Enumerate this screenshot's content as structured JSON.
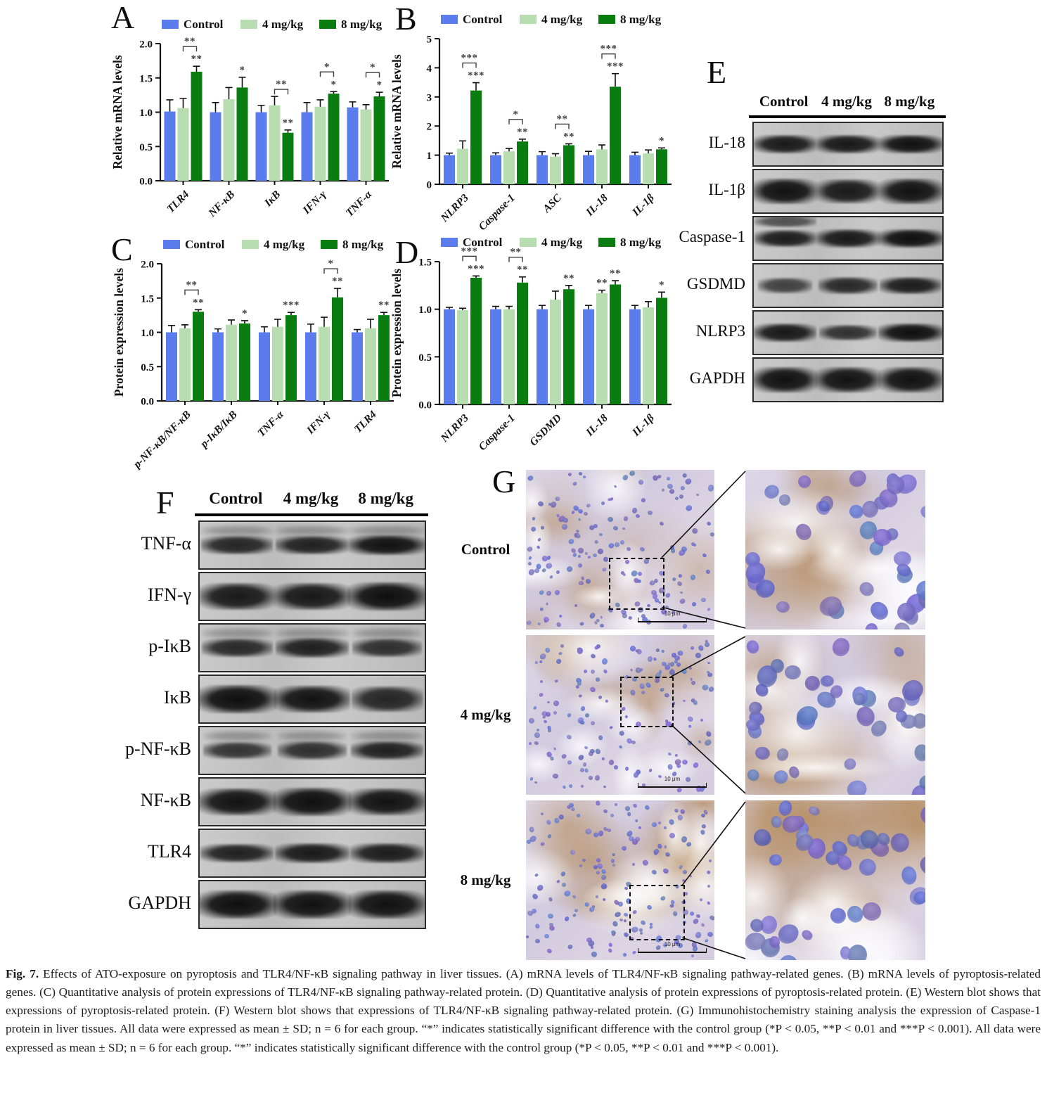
{
  "legend": {
    "items": [
      {
        "label": "Control",
        "color": "#5a7cec"
      },
      {
        "label": "4 mg/kg",
        "color": "#b7ddb0"
      },
      {
        "label": "8 mg/kg",
        "color": "#0a7d11"
      }
    ]
  },
  "chart_data": [
    {
      "letter": "A",
      "type": "bar",
      "ylabel": "Relative mRNA levels",
      "ylim": [
        0,
        2.0
      ],
      "yticks": [
        0,
        0.5,
        1.0,
        1.5,
        2.0
      ],
      "tick_decimals": 1,
      "grid": false,
      "legend_position": "top",
      "categories": [
        "TLR4",
        "NF-κB",
        "IκB",
        "IFN-γ",
        "TNF-α"
      ],
      "series": [
        {
          "name": "Control",
          "values": [
            1.01,
            1.0,
            1.0,
            1.0,
            1.07
          ],
          "errors": [
            0.17,
            0.14,
            0.1,
            0.14,
            0.08
          ]
        },
        {
          "name": "4 mg/kg",
          "values": [
            1.06,
            1.19,
            1.1,
            1.08,
            1.04
          ],
          "errors": [
            0.14,
            0.17,
            0.13,
            0.1,
            0.07
          ]
        },
        {
          "name": "8 mg/kg",
          "values": [
            1.59,
            1.36,
            0.7,
            1.27,
            1.23
          ],
          "errors": [
            0.08,
            0.15,
            0.04,
            0.03,
            0.06
          ]
        }
      ],
      "annotations": [
        {
          "cat": 0,
          "type": "bar",
          "series": 2,
          "stars": "**"
        },
        {
          "cat": 0,
          "type": "bracket",
          "stars": "**"
        },
        {
          "cat": 1,
          "type": "bar",
          "series": 2,
          "stars": "*"
        },
        {
          "cat": 2,
          "type": "bar",
          "series": 2,
          "stars": "**"
        },
        {
          "cat": 2,
          "type": "bracket",
          "stars": "**"
        },
        {
          "cat": 3,
          "type": "bar",
          "series": 2,
          "stars": "*"
        },
        {
          "cat": 3,
          "type": "bracket",
          "stars": "*"
        },
        {
          "cat": 4,
          "type": "bar",
          "series": 2,
          "stars": "*"
        },
        {
          "cat": 4,
          "type": "bracket",
          "stars": "*"
        }
      ]
    },
    {
      "letter": "B",
      "type": "bar",
      "ylabel": "Relative mRNA levels",
      "ylim": [
        0,
        5
      ],
      "yticks": [
        0,
        1,
        2,
        3,
        4,
        5
      ],
      "tick_decimals": 0,
      "grid": false,
      "legend_position": "top",
      "categories": [
        "NLRP3",
        "Caspase-1",
        "ASC",
        "IL-18",
        "IL-1β"
      ],
      "series": [
        {
          "name": "Control",
          "values": [
            1.0,
            1.0,
            1.0,
            1.0,
            1.0
          ],
          "errors": [
            0.07,
            0.08,
            0.12,
            0.13,
            0.1
          ]
        },
        {
          "name": "4 mg/kg",
          "values": [
            1.22,
            1.13,
            0.95,
            1.2,
            1.06
          ],
          "errors": [
            0.27,
            0.1,
            0.1,
            0.15,
            0.12
          ]
        },
        {
          "name": "8 mg/kg",
          "values": [
            3.22,
            1.47,
            1.34,
            3.35,
            1.2
          ],
          "errors": [
            0.27,
            0.08,
            0.05,
            0.45,
            0.05
          ]
        }
      ],
      "annotations": [
        {
          "cat": 0,
          "type": "bar",
          "series": 2,
          "stars": "***"
        },
        {
          "cat": 0,
          "type": "bracket",
          "stars": "***"
        },
        {
          "cat": 1,
          "type": "bar",
          "series": 2,
          "stars": "**"
        },
        {
          "cat": 1,
          "type": "bracket",
          "stars": "*"
        },
        {
          "cat": 2,
          "type": "bar",
          "series": 2,
          "stars": "**"
        },
        {
          "cat": 2,
          "type": "bracket",
          "stars": "**"
        },
        {
          "cat": 3,
          "type": "bar",
          "series": 2,
          "stars": "***"
        },
        {
          "cat": 3,
          "type": "bracket",
          "stars": "***"
        },
        {
          "cat": 4,
          "type": "bar",
          "series": 2,
          "stars": "*"
        }
      ]
    },
    {
      "letter": "C",
      "type": "bar",
      "ylabel": "Protein expression levels",
      "ylim": [
        0,
        2.0
      ],
      "yticks": [
        0,
        0.5,
        1.0,
        1.5,
        2.0
      ],
      "tick_decimals": 1,
      "grid": false,
      "legend_position": "top",
      "categories": [
        "p-NF-κB/NF-κB",
        "p-IκB/IκB",
        "TNF-α",
        "IFN-γ",
        "TLR4"
      ],
      "series": [
        {
          "name": "Control",
          "values": [
            1.0,
            1.0,
            1.0,
            1.0,
            1.0
          ],
          "errors": [
            0.1,
            0.05,
            0.08,
            0.12,
            0.04
          ]
        },
        {
          "name": "4 mg/kg",
          "values": [
            1.06,
            1.11,
            1.08,
            1.08,
            1.06
          ],
          "errors": [
            0.05,
            0.07,
            0.11,
            0.14,
            0.13
          ]
        },
        {
          "name": "8 mg/kg",
          "values": [
            1.3,
            1.13,
            1.25,
            1.51,
            1.25
          ],
          "errors": [
            0.03,
            0.04,
            0.04,
            0.13,
            0.04
          ]
        }
      ],
      "annotations": [
        {
          "cat": 0,
          "type": "bar",
          "series": 2,
          "stars": "**"
        },
        {
          "cat": 0,
          "type": "bracket",
          "stars": "**"
        },
        {
          "cat": 1,
          "type": "bar",
          "series": 2,
          "stars": "*"
        },
        {
          "cat": 2,
          "type": "bar",
          "series": 2,
          "stars": "***"
        },
        {
          "cat": 3,
          "type": "bar",
          "series": 2,
          "stars": "**"
        },
        {
          "cat": 3,
          "type": "bracket",
          "stars": "*"
        },
        {
          "cat": 4,
          "type": "bar",
          "series": 2,
          "stars": "**"
        }
      ]
    },
    {
      "letter": "D",
      "type": "bar",
      "ylabel": "Protein expression levels",
      "ylim": [
        0,
        1.5
      ],
      "yticks": [
        0,
        0.5,
        1.0,
        1.5
      ],
      "tick_decimals": 1,
      "grid": false,
      "legend_position": "top",
      "categories": [
        "NLRP3",
        "Caspase-1",
        "GSDMD",
        "IL-18",
        "IL-1β"
      ],
      "series": [
        {
          "name": "Control",
          "values": [
            1.0,
            1.0,
            1.0,
            1.0,
            1.0
          ],
          "errors": [
            0.02,
            0.03,
            0.04,
            0.04,
            0.04
          ]
        },
        {
          "name": "4 mg/kg",
          "values": [
            0.99,
            1.0,
            1.1,
            1.17,
            1.02
          ],
          "errors": [
            0.02,
            0.03,
            0.09,
            0.03,
            0.06
          ]
        },
        {
          "name": "8 mg/kg",
          "values": [
            1.33,
            1.28,
            1.21,
            1.26,
            1.12
          ],
          "errors": [
            0.02,
            0.06,
            0.04,
            0.04,
            0.06
          ]
        }
      ],
      "annotations": [
        {
          "cat": 0,
          "type": "bar",
          "series": 2,
          "stars": "***"
        },
        {
          "cat": 0,
          "type": "bracket",
          "stars": "***"
        },
        {
          "cat": 1,
          "type": "bar",
          "series": 2,
          "stars": "**"
        },
        {
          "cat": 1,
          "type": "bracket",
          "stars": "**"
        },
        {
          "cat": 2,
          "type": "bar",
          "series": 2,
          "stars": "**"
        },
        {
          "cat": 3,
          "type": "bar",
          "series": 1,
          "stars": "**"
        },
        {
          "cat": 3,
          "type": "bar",
          "series": 2,
          "stars": "**"
        },
        {
          "cat": 4,
          "type": "bar",
          "series": 2,
          "stars": "*"
        }
      ]
    }
  ],
  "western_blots": [
    {
      "letter": "E",
      "col_headers": [
        "Control",
        "4 mg/kg",
        "8 mg/kg"
      ],
      "rows": [
        {
          "protein": "IL-18",
          "bands": [
            0.88,
            0.9,
            0.97
          ]
        },
        {
          "protein": "IL-1β",
          "bands": [
            0.97,
            0.88,
            0.96
          ],
          "tall": 1
        },
        {
          "protein": "Caspase-1",
          "bands": [
            0.85,
            0.88,
            1.0
          ],
          "double": [
            1,
            0,
            0
          ]
        },
        {
          "protein": "GSDMD",
          "bands": [
            0.45,
            0.72,
            0.85
          ]
        },
        {
          "protein": "NLRP3",
          "bands": [
            0.9,
            0.62,
            1.0
          ]
        },
        {
          "protein": "GAPDH",
          "bands": [
            0.97,
            0.95,
            0.96
          ],
          "tall": 1
        }
      ]
    },
    {
      "letter": "F",
      "col_headers": [
        "Control",
        "4 mg/kg",
        "8 mg/kg"
      ],
      "rows": [
        {
          "protein": "TNF-α",
          "bands": [
            0.75,
            0.8,
            0.97
          ],
          "smear": 1
        },
        {
          "protein": "IFN-γ",
          "bands": [
            0.88,
            0.9,
            1.0
          ],
          "tall": 1
        },
        {
          "protein": "p-IκB",
          "bands": [
            0.72,
            0.82,
            0.65
          ],
          "smear": 1
        },
        {
          "protein": "IκB",
          "bands": [
            1.0,
            0.95,
            0.75
          ],
          "tall": 1
        },
        {
          "protein": "p-NF-κB",
          "bands": [
            0.6,
            0.65,
            0.8
          ],
          "smear": 1
        },
        {
          "protein": "NF-κB",
          "bands": [
            0.95,
            1.0,
            0.95
          ],
          "tall": 1
        },
        {
          "protein": "TLR4",
          "bands": [
            0.8,
            0.88,
            0.85
          ]
        },
        {
          "protein": "GAPDH",
          "bands": [
            1.0,
            0.97,
            0.97
          ],
          "tall": 1
        }
      ]
    }
  ],
  "ihc": {
    "letter": "G",
    "scale_label": "10 μm",
    "rows": [
      {
        "label": "Control",
        "brown": 0.22
      },
      {
        "label": "4 mg/kg",
        "brown": 0.28
      },
      {
        "label": "8 mg/kg",
        "brown": 0.62
      }
    ]
  },
  "caption": {
    "fig_label": "Fig. 7.",
    "text": " Effects of ATO-exposure on pyroptosis and TLR4/NF-κB signaling pathway in liver tissues. (A) mRNA levels of TLR4/NF-κB signaling pathway-related genes. (B) mRNA levels of pyroptosis-related genes. (C) Quantitative analysis of protein expressions of TLR4/NF-κB signaling pathway-related protein. (D) Quantitative analysis of protein expressions of pyroptosis-related protein. (E) Western blot shows that expressions of pyroptosis-related protein. (F) Western blot shows that expressions of TLR4/NF-κB signaling pathway-related protein. (G) Immunohistochemistry staining analysis the expression of Caspase-1 protein in liver tissues. All data were expressed as mean ± SD; n = 6 for each group. “*” indicates statistically significant difference with the control group (*P < 0.05, **P < 0.01 and ***P < 0.001). All data were expressed as mean ± SD; n = 6 for each group. “*” indicates statistically significant difference with the control group (*P < 0.05, **P < 0.01 and ***P < 0.001)."
  }
}
